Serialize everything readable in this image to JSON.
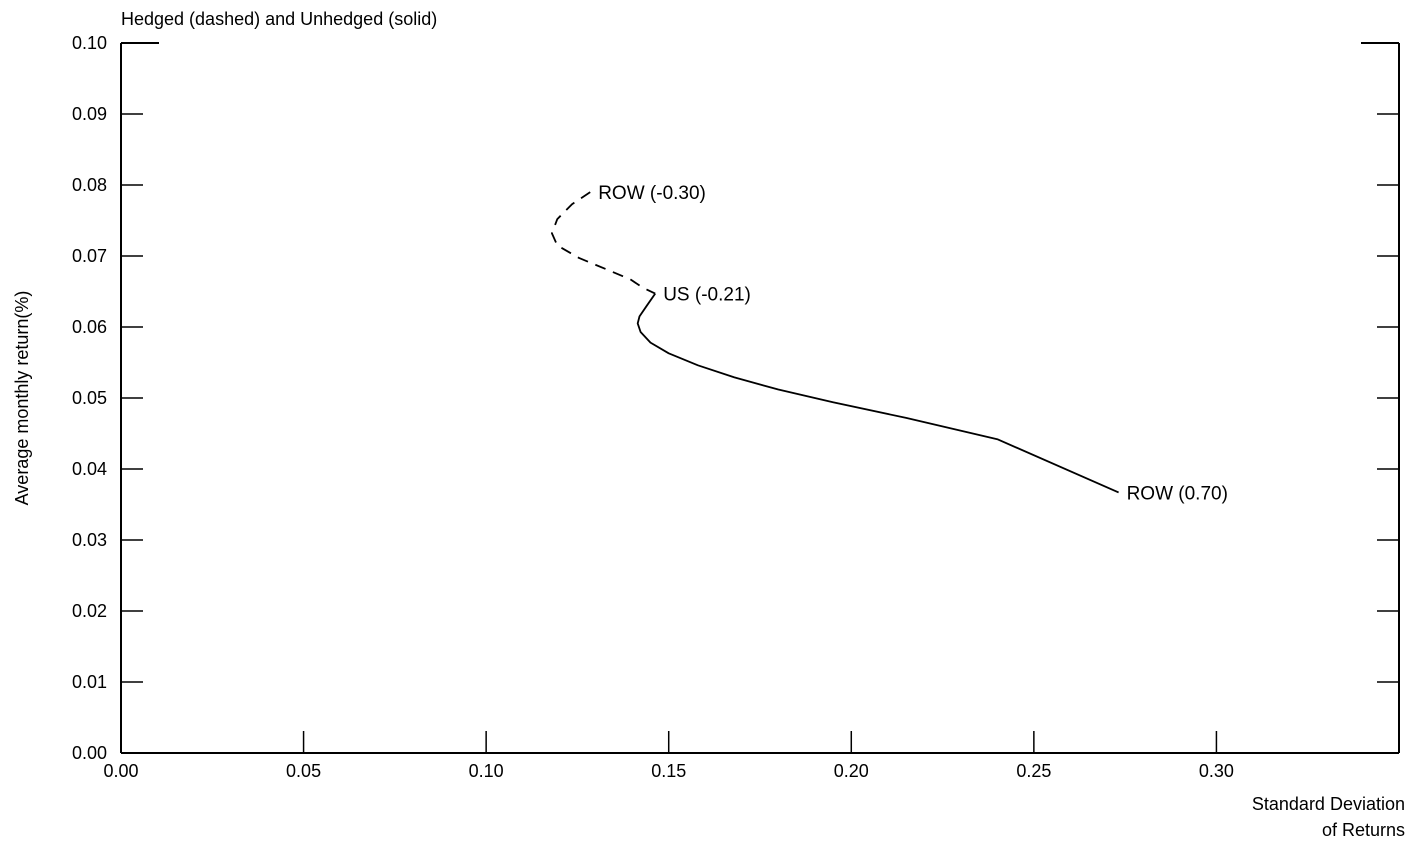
{
  "chart_data": {
    "type": "line",
    "title": "Hedged (dashed) and Unhedged (solid)",
    "xlabel": [
      "Standard Deviation",
      "of Returns"
    ],
    "ylabel": "Average monthly return(%)",
    "xlim": [
      0.0,
      0.35
    ],
    "ylim": [
      0.0,
      0.1
    ],
    "x_ticks": [
      "0.00",
      "0.05",
      "0.10",
      "0.15",
      "0.20",
      "0.25",
      "0.30"
    ],
    "y_ticks": [
      "0.00",
      "0.01",
      "0.02",
      "0.03",
      "0.04",
      "0.05",
      "0.06",
      "0.07",
      "0.08",
      "0.09",
      "0.10"
    ],
    "grid": false,
    "series": [
      {
        "style": "dashed",
        "x": [
          0.1285,
          0.1235,
          0.1195,
          0.118,
          0.1195,
          0.1255,
          0.1335,
          0.1395,
          0.143,
          0.1463
        ],
        "y": [
          0.079,
          0.0773,
          0.0752,
          0.0732,
          0.0715,
          0.0697,
          0.068,
          0.0667,
          0.0655,
          0.0647
        ]
      },
      {
        "style": "solid",
        "x": [
          0.1463,
          0.144,
          0.142,
          0.1415,
          0.1423,
          0.145,
          0.15,
          0.158,
          0.168,
          0.18,
          0.195,
          0.215,
          0.24,
          0.2732
        ],
        "y": [
          0.0647,
          0.063,
          0.0615,
          0.0605,
          0.0593,
          0.0578,
          0.0563,
          0.0546,
          0.0529,
          0.0512,
          0.0494,
          0.0472,
          0.0442,
          0.0367
        ]
      }
    ],
    "annotations": [
      {
        "text": "ROW (-0.30)",
        "x": 0.1285,
        "y": 0.079
      },
      {
        "text": "US (-0.21)",
        "x": 0.1463,
        "y": 0.0647
      },
      {
        "text": "ROW (0.70)",
        "x": 0.2732,
        "y": 0.0367
      }
    ]
  }
}
